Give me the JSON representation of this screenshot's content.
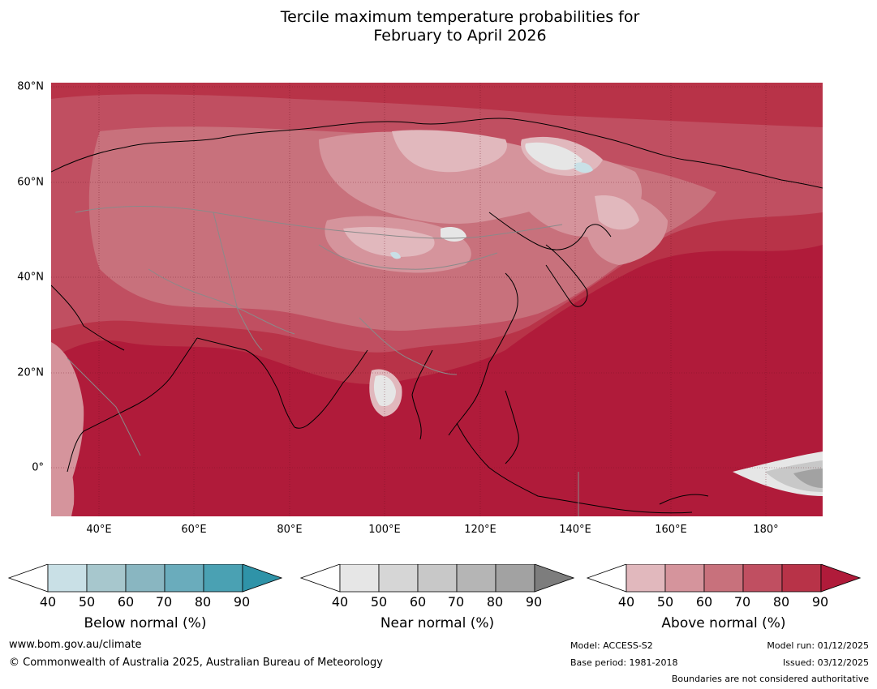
{
  "title": {
    "line1": "Tercile maximum temperature probabilities for",
    "line2": "February to April 2026"
  },
  "map": {
    "lat_labels": [
      "80°N",
      "60°N",
      "40°N",
      "20°N",
      "0°"
    ],
    "lon_labels": [
      "40°E",
      "60°E",
      "80°E",
      "100°E",
      "120°E",
      "140°E",
      "160°E",
      "180°"
    ],
    "lat_range": [
      -10,
      81
    ],
    "lon_range": [
      30,
      192
    ]
  },
  "legends": [
    {
      "title": "Below normal (%)",
      "ticks": [
        "40",
        "50",
        "60",
        "70",
        "80",
        "90"
      ],
      "colors": [
        "#ffffff",
        "#c9e0e6",
        "#a7c7cd",
        "#89b6c1",
        "#6aacbc",
        "#4aa1b3",
        "#2f93a8"
      ]
    },
    {
      "title": "Near normal (%)",
      "ticks": [
        "40",
        "50",
        "60",
        "70",
        "80",
        "90"
      ],
      "colors": [
        "#ffffff",
        "#e6e6e6",
        "#d6d6d6",
        "#c8c8c8",
        "#b5b5b5",
        "#a2a2a2",
        "#7d7d7d"
      ]
    },
    {
      "title": "Above normal (%)",
      "ticks": [
        "40",
        "50",
        "60",
        "70",
        "80",
        "90"
      ],
      "colors": [
        "#ffffff",
        "#e1b8bd",
        "#d5949c",
        "#c8717c",
        "#c04f61",
        "#b83348",
        "#b01b3a"
      ]
    }
  ],
  "footer": {
    "url": "www.bom.gov.au/climate",
    "copyright": "© Commonwealth of Australia 2025, Australian Bureau of Meteorology",
    "model": "Model: ACCESS-S2",
    "base_period": "Base period: 1981-2018",
    "model_run": "Model run: 01/12/2025",
    "issued": "Issued: 03/12/2025",
    "disclaimer": "Boundaries are not considered authoritative"
  }
}
